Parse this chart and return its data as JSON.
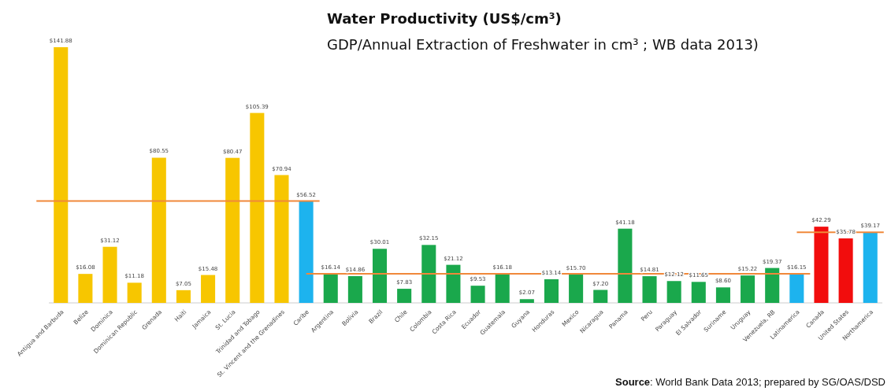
{
  "chart_data": {
    "type": "bar",
    "title": "Water Productivity (US$/cm³)",
    "subtitle": "GDP/Annual Extraction of Freshwater in cm³ ; WB data 2013)",
    "categories": [
      "Antigua and Barbuda",
      "Belize",
      "Dominica",
      "Dominican Republic",
      "Grenada",
      "Haiti",
      "Jamaica",
      "St. Lucia",
      "Trinidad and Tobago",
      "St. Vincent and the Grenadines",
      "Caribe",
      "Argentina",
      "Bolivia",
      "Brazil",
      "Chile",
      "Colombia",
      "Costa Rica",
      "Ecuador",
      "Guatemala",
      "Guyana",
      "Honduras",
      "Mexico",
      "Nicaragua",
      "Panama",
      "Peru",
      "Paraguay",
      "El Salvador",
      "Suriname",
      "Uruguay",
      "Venezuela, RB",
      "Latinamerica",
      "Canada",
      "United States",
      "Northamerica"
    ],
    "values": [
      141.88,
      16.08,
      31.12,
      11.18,
      80.55,
      7.05,
      15.48,
      80.47,
      105.39,
      70.94,
      56.52,
      16.14,
      14.86,
      30.01,
      7.83,
      32.15,
      21.12,
      9.53,
      16.18,
      2.07,
      13.14,
      15.7,
      7.2,
      41.18,
      14.81,
      12.12,
      11.65,
      8.6,
      15.22,
      19.37,
      16.15,
      42.29,
      35.78,
      39.17
    ],
    "value_labels": [
      "$141.88",
      "$16.08",
      "$31.12",
      "$11.18",
      "$80.55",
      "$7.05",
      "$15.48",
      "$80.47",
      "$105.39",
      "$70.94",
      "$56.52",
      "$16.14",
      "$14.86",
      "$30.01",
      "$7.83",
      "$32.15",
      "$21.12",
      "$9.53",
      "$16.18",
      "$2.07",
      "$13.14",
      "$15.70",
      "$7.20",
      "$41.18",
      "$14.81",
      "$12.12",
      "$11.65",
      "$8.60",
      "$15.22",
      "$19.37",
      "$16.15",
      "$42.29",
      "$35.78",
      "$39.17"
    ],
    "colors": [
      "#f7c600",
      "#f7c600",
      "#f7c600",
      "#f7c600",
      "#f7c600",
      "#f7c600",
      "#f7c600",
      "#f7c600",
      "#f7c600",
      "#f7c600",
      "#1db3ee",
      "#1aa84c",
      "#1aa84c",
      "#1aa84c",
      "#1aa84c",
      "#1aa84c",
      "#1aa84c",
      "#1aa84c",
      "#1aa84c",
      "#1aa84c",
      "#1aa84c",
      "#1aa84c",
      "#1aa84c",
      "#1aa84c",
      "#1aa84c",
      "#1aa84c",
      "#1aa84c",
      "#1aa84c",
      "#1aa84c",
      "#1aa84c",
      "#1db3ee",
      "#f20d0d",
      "#f20d0d",
      "#1db3ee"
    ],
    "ref_lines": [
      {
        "axis": "y",
        "value": 56.52,
        "color": "#f0883a"
      },
      {
        "axis": "y",
        "value": 16.15,
        "color": "#f0883a"
      },
      {
        "axis": "y",
        "value": 39.17,
        "color": "#f0883a"
      }
    ],
    "annotations": [
      "Source: World Bank Data 2013; prepared by SG/OAS/DSD"
    ],
    "grid": false
  }
}
